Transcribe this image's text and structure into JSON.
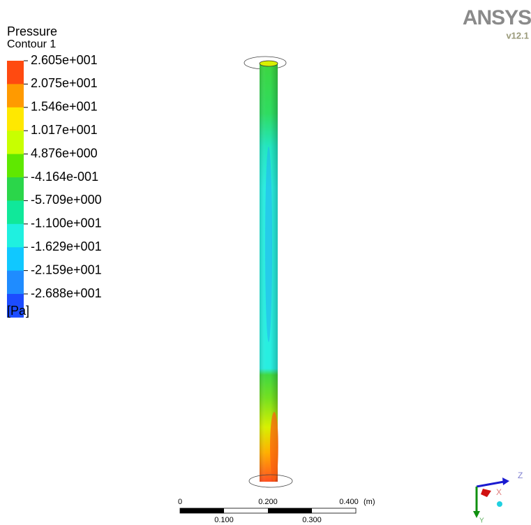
{
  "legend": {
    "title": "Pressure",
    "subtitle": "Contour 1",
    "labels": [
      "2.605e+001",
      "2.075e+001",
      "1.546e+001",
      "1.017e+001",
      "4.876e+000",
      "-4.164e-001",
      "-5.709e+000",
      "-1.100e+001",
      "-1.629e+001",
      "-2.159e+001",
      "-2.688e+001"
    ],
    "colors": [
      "#ff4a10",
      "#ff9a00",
      "#ffe800",
      "#c8ff00",
      "#5fe800",
      "#2bd64a",
      "#10e89a",
      "#1ff0e0",
      "#10c8ff",
      "#1f8cff",
      "#1c4cff"
    ],
    "unit": "[Pa]"
  },
  "logo": {
    "name": "ANSYS",
    "version": "v12.1"
  },
  "scale_bar": {
    "top_labels": [
      "0",
      "0.200",
      "0.400"
    ],
    "unit": "(m)",
    "bottom_labels": [
      "0.100",
      "0.300"
    ]
  },
  "axes": {
    "z": "Z",
    "x": "X",
    "y": "Y"
  }
}
